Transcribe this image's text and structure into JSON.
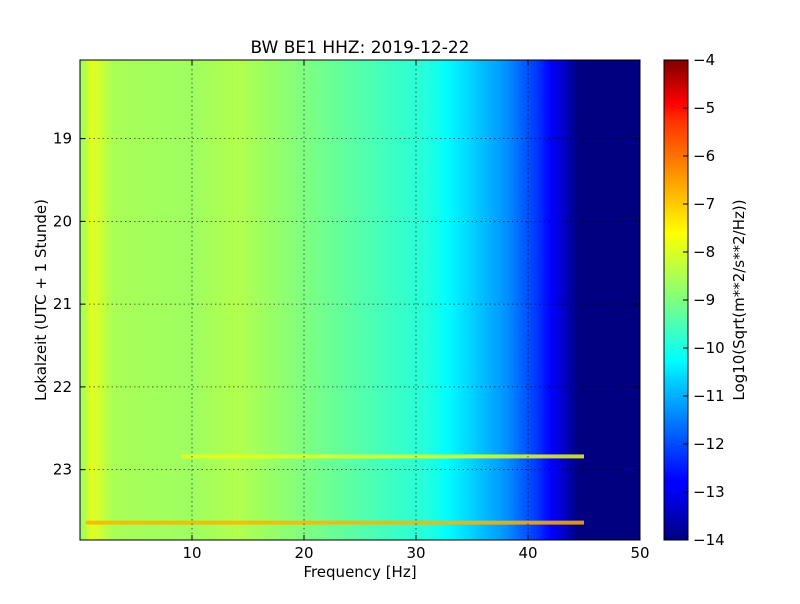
{
  "chart_data": {
    "type": "heatmap",
    "title": "BW BE1 HHZ: 2019-12-22",
    "xlabel": "Frequency [Hz]",
    "ylabel": "Lokalzeit (UTC + 1 Stunde)",
    "xlim": [
      0,
      50
    ],
    "ylim": [
      18.05,
      23.85
    ],
    "y_inverted": true,
    "xticks": [
      10,
      20,
      30,
      40,
      50
    ],
    "yticks": [
      19,
      20,
      21,
      22,
      23
    ],
    "grid": true,
    "colormap": "jet",
    "colorbar": {
      "label": "Log10(Sqrt(m**2/s**2/Hz))",
      "range": [
        -14,
        -4
      ],
      "ticks": [
        -4,
        -5,
        -6,
        -7,
        -8,
        -9,
        -10,
        -11,
        -12,
        -13,
        -14
      ]
    },
    "spectral_profile": [
      {
        "freq_hz": 0.2,
        "log10_amplitude": -8.7
      },
      {
        "freq_hz": 1,
        "log10_amplitude": -8.0
      },
      {
        "freq_hz": 3,
        "log10_amplitude": -8.6
      },
      {
        "freq_hz": 10,
        "log10_amplitude": -8.7
      },
      {
        "freq_hz": 14,
        "log10_amplitude": -8.5
      },
      {
        "freq_hz": 20,
        "log10_amplitude": -9.0
      },
      {
        "freq_hz": 26,
        "log10_amplitude": -9.5
      },
      {
        "freq_hz": 31,
        "log10_amplitude": -9.9
      },
      {
        "freq_hz": 35,
        "log10_amplitude": -10.7
      },
      {
        "freq_hz": 38,
        "log10_amplitude": -11.3
      },
      {
        "freq_hz": 41,
        "log10_amplitude": -12.3
      },
      {
        "freq_hz": 43,
        "log10_amplitude": -13.2
      },
      {
        "freq_hz": 44.5,
        "log10_amplitude": -14.0
      },
      {
        "freq_hz": 50,
        "log10_amplitude": -14.0
      }
    ],
    "strong_bands": [
      {
        "time_h": 22.84,
        "freq_range_hz": [
          9,
          45
        ],
        "log10_amplitude": -8.0
      },
      {
        "time_h": 23.64,
        "freq_range_hz": [
          0.5,
          45
        ],
        "log10_amplitude": -7.0
      }
    ]
  }
}
